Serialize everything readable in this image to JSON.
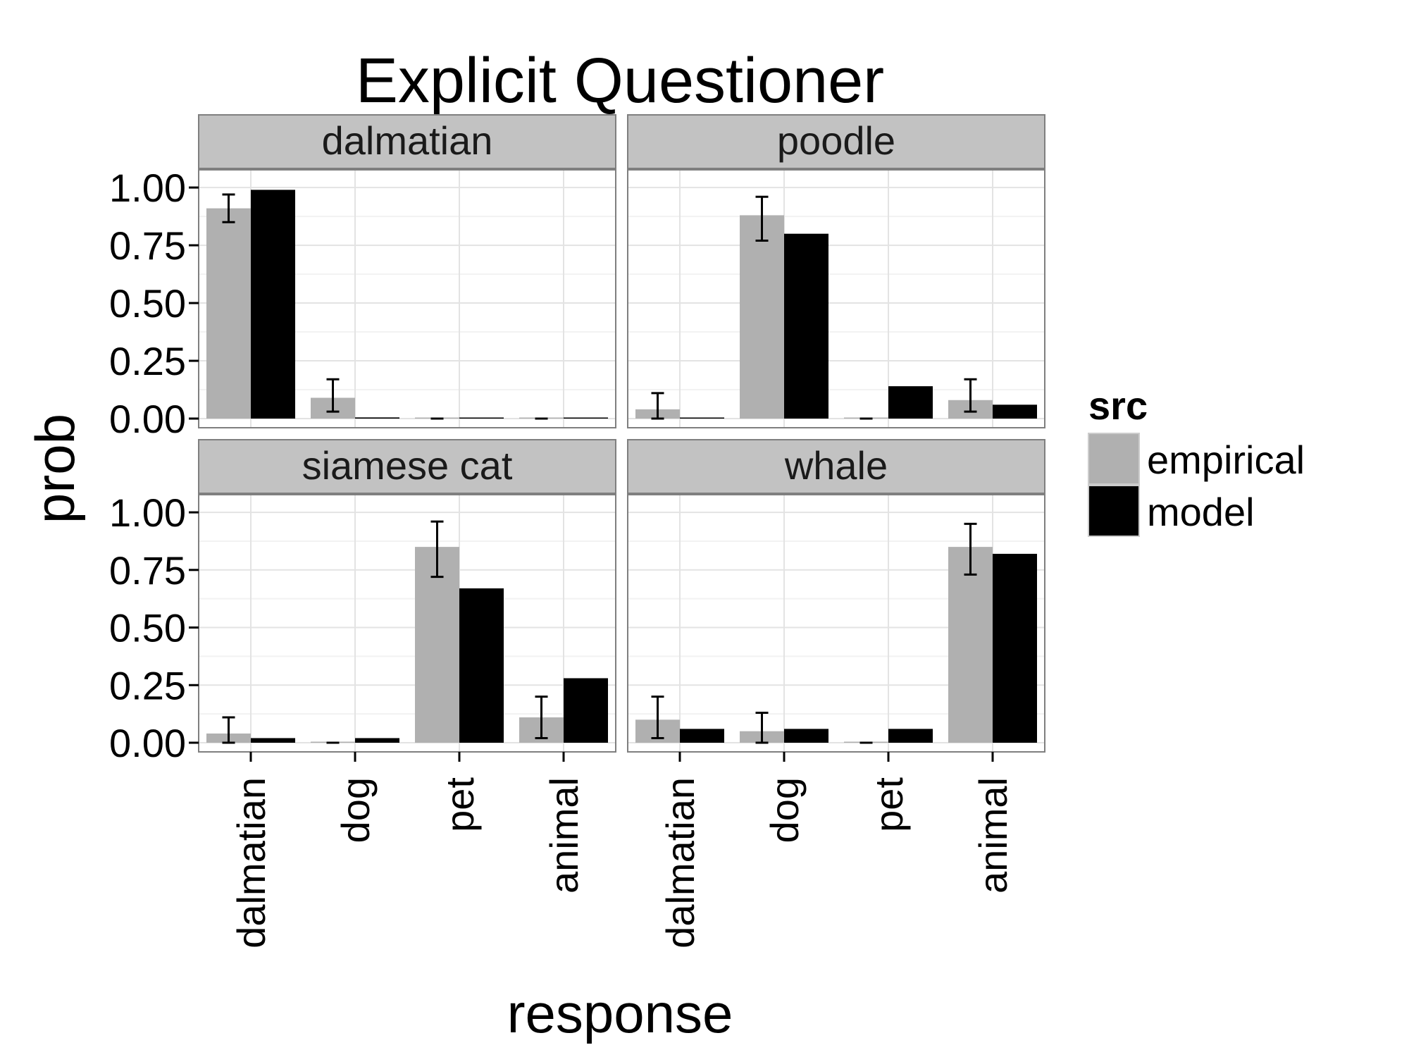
{
  "chart_data": {
    "type": "bar",
    "title": "Explicit Questioner",
    "xlabel": "response",
    "ylabel": "prob",
    "ylim": [
      0,
      1.04
    ],
    "yticks": [
      "0.00",
      "0.25",
      "0.50",
      "0.75",
      "1.00"
    ],
    "categories": [
      "dalmatian",
      "dog",
      "pet",
      "animal"
    ],
    "legend": {
      "title": "src",
      "entries": [
        {
          "label": "empirical",
          "color": "#b0b0b0"
        },
        {
          "label": "model",
          "color": "#000000"
        }
      ]
    },
    "grid": true,
    "legend_position": "right",
    "panels": [
      {
        "label": "dalmatian",
        "series": [
          {
            "name": "empirical",
            "values": [
              0.91,
              0.09,
              0.0,
              0.0
            ],
            "err_low": [
              0.85,
              0.03,
              0.0,
              0.0
            ],
            "err_high": [
              0.97,
              0.17,
              0.0,
              0.0
            ]
          },
          {
            "name": "model",
            "values": [
              0.99,
              0.005,
              0.0,
              0.0
            ]
          }
        ]
      },
      {
        "label": "poodle",
        "series": [
          {
            "name": "empirical",
            "values": [
              0.04,
              0.88,
              0.0,
              0.08
            ],
            "err_low": [
              0.0,
              0.77,
              0.0,
              0.03
            ],
            "err_high": [
              0.11,
              0.96,
              0.0,
              0.17
            ]
          },
          {
            "name": "model",
            "values": [
              0.0,
              0.8,
              0.14,
              0.06
            ]
          }
        ]
      },
      {
        "label": "siamese cat",
        "series": [
          {
            "name": "empirical",
            "values": [
              0.04,
              0.0,
              0.85,
              0.11
            ],
            "err_low": [
              0.0,
              0.0,
              0.72,
              0.02
            ],
            "err_high": [
              0.11,
              0.0,
              0.96,
              0.2
            ]
          },
          {
            "name": "model",
            "values": [
              0.02,
              0.02,
              0.67,
              0.28
            ]
          }
        ]
      },
      {
        "label": "whale",
        "series": [
          {
            "name": "empirical",
            "values": [
              0.1,
              0.05,
              0.0,
              0.85
            ],
            "err_low": [
              0.02,
              0.0,
              0.0,
              0.73
            ],
            "err_high": [
              0.2,
              0.13,
              0.0,
              0.95
            ]
          },
          {
            "name": "model",
            "values": [
              0.06,
              0.06,
              0.06,
              0.82
            ]
          }
        ]
      }
    ]
  }
}
